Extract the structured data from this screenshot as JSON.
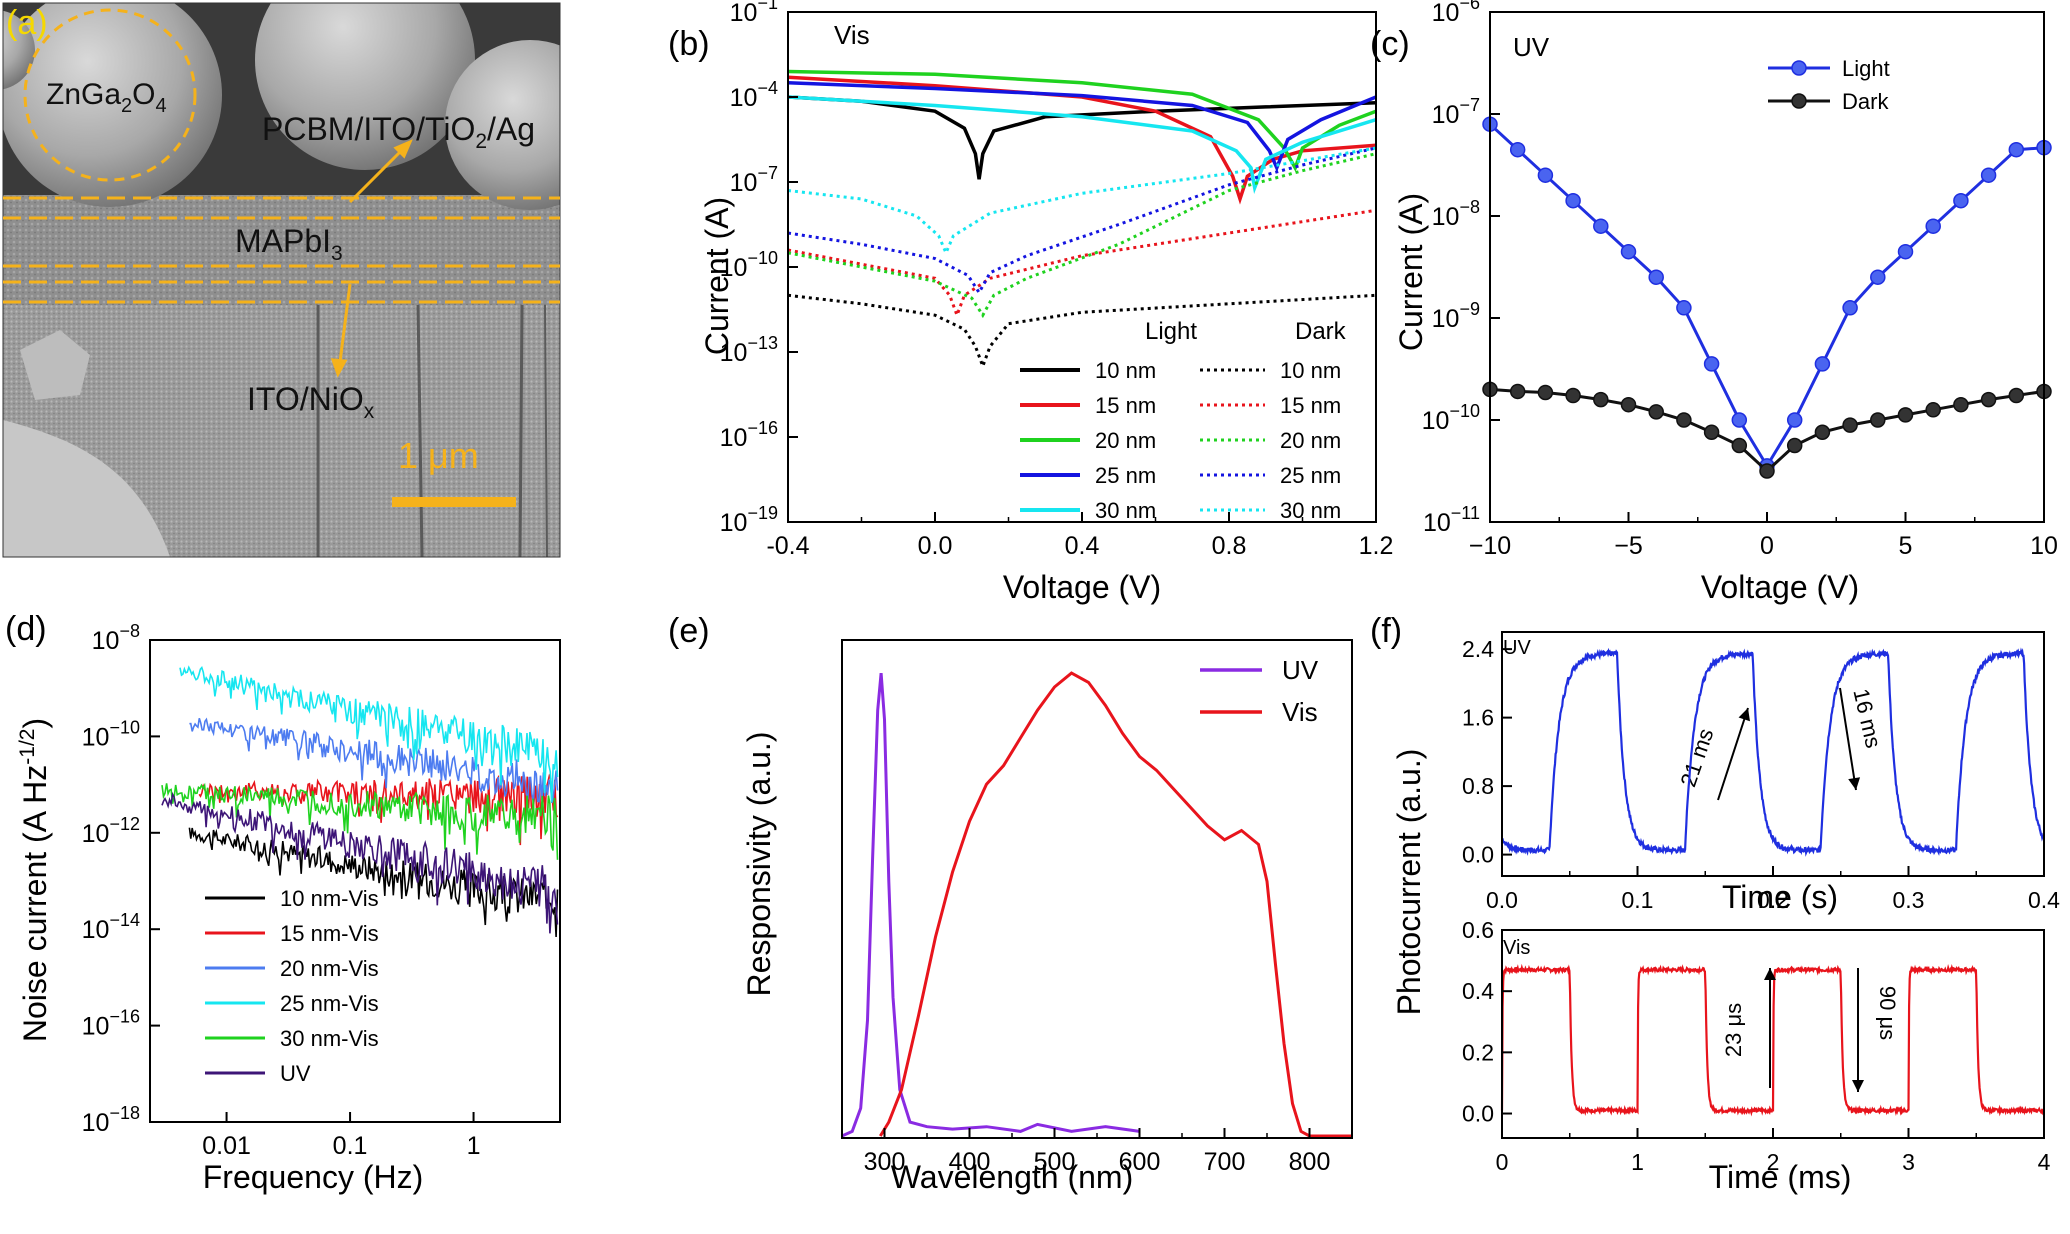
{
  "panels": {
    "a": {
      "label": "(a)",
      "sphere_label": "ZnGa",
      "sphere_sub": "2",
      "sphere_tail": "O",
      "sphere_sub2": "4",
      "top_layer_main": "PCBM/ITO/TiO",
      "top_layer_sub": "2",
      "top_layer_tail": "/Ag",
      "perovskite_main": "MAPbI",
      "perovskite_sub": "3",
      "bottom_layer_main": "ITO/NiO",
      "bottom_layer_sub": "x",
      "scale_bar_label": "1 μm",
      "colors": {
        "dash": "#f5b21b",
        "label": "#111111",
        "scale_text": "#f5b21b",
        "panel_label": "#f5d800"
      }
    },
    "b": {
      "label": "(b)",
      "mode": "Vis",
      "xlabel": "Voltage (V)",
      "ylabel": "Current (A)",
      "legend_light": "Light",
      "legend_dark": "Dark"
    },
    "c": {
      "label": "(c)",
      "mode": "UV",
      "xlabel": "Voltage (V)",
      "ylabel": "Current (A)"
    },
    "d": {
      "label": "(d)",
      "xlabel": "Frequency (Hz)",
      "ylabel_main": "Noise current (A Hz",
      "ylabel_sup": "-1/2",
      "ylabel_tail": ")"
    },
    "e": {
      "label": "(e)",
      "xlabel": "Wavelength (nm)",
      "ylabel": "Responsivity (a.u.)"
    },
    "f": {
      "label": "(f)",
      "ylabel": "Photocurrent (a.u.)",
      "top_xlabel": "Time (s)",
      "bottom_xlabel": "Time (ms)",
      "top_mode": "UV",
      "bottom_mode": "Vis",
      "rise_top": "21 ms",
      "fall_top": "16 ms",
      "rise_bottom": "23 μs",
      "fall_bottom": "90 μs"
    }
  },
  "chart_data": [
    {
      "panel": "b",
      "type": "line",
      "xlim": [
        -0.4,
        1.2
      ],
      "xticks": [
        -0.4,
        0.0,
        0.4,
        0.8,
        1.2
      ],
      "xtick_labels": [
        "-0.4",
        "0.0",
        "0.4",
        "0.8",
        "1.2"
      ],
      "ylog": true,
      "ylim_exp": [
        -19,
        -1
      ],
      "ytick_exps": [
        -19,
        -16,
        -13,
        -10,
        -7,
        -4,
        -1
      ],
      "series": [
        {
          "name": "10 nm",
          "group": "Light",
          "color": "#000000",
          "dash": "solid",
          "v0": 0.12,
          "x": [
            -0.4,
            -0.2,
            0.0,
            0.08,
            0.11,
            0.12,
            0.13,
            0.16,
            0.3,
            0.6,
            0.9,
            1.2
          ],
          "y_exp": [
            -4.0,
            -4.15,
            -4.5,
            -5.1,
            -6.0,
            -6.9,
            -6.0,
            -5.2,
            -4.7,
            -4.5,
            -4.35,
            -4.2
          ]
        },
        {
          "name": "15 nm",
          "group": "Light",
          "color": "#e8141c",
          "dash": "solid",
          "v0": 0.83,
          "x": [
            -0.4,
            0.0,
            0.4,
            0.6,
            0.75,
            0.81,
            0.83,
            0.85,
            0.92,
            1.0,
            1.2
          ],
          "y_exp": [
            -3.3,
            -3.6,
            -4.0,
            -4.5,
            -5.4,
            -6.8,
            -7.6,
            -6.8,
            -6.2,
            -5.9,
            -5.7
          ]
        },
        {
          "name": "20 nm",
          "group": "Light",
          "color": "#1fd21f",
          "dash": "solid",
          "v0": 0.98,
          "x": [
            -0.4,
            0.0,
            0.4,
            0.7,
            0.88,
            0.95,
            0.98,
            1.0,
            1.1,
            1.2
          ],
          "y_exp": [
            -3.1,
            -3.2,
            -3.5,
            -3.9,
            -4.8,
            -5.8,
            -6.5,
            -5.8,
            -5.0,
            -4.5
          ]
        },
        {
          "name": "25 nm",
          "group": "Light",
          "color": "#1414e0",
          "dash": "solid",
          "v0": 0.93,
          "x": [
            -0.4,
            0.0,
            0.4,
            0.7,
            0.85,
            0.91,
            0.93,
            0.96,
            1.05,
            1.2
          ],
          "y_exp": [
            -3.5,
            -3.7,
            -3.95,
            -4.3,
            -4.9,
            -5.9,
            -6.5,
            -5.5,
            -4.8,
            -4.0
          ]
        },
        {
          "name": "30 nm",
          "group": "Light",
          "color": "#16e6f0",
          "dash": "solid",
          "v0": 0.87,
          "x": [
            -0.4,
            0.0,
            0.4,
            0.7,
            0.82,
            0.86,
            0.87,
            0.9,
            1.0,
            1.2
          ],
          "y_exp": [
            -4.0,
            -4.3,
            -4.7,
            -5.2,
            -5.9,
            -6.5,
            -7.2,
            -6.2,
            -5.6,
            -4.8
          ]
        },
        {
          "name": "10 nm",
          "group": "Dark",
          "color": "#000000",
          "dash": "dotted",
          "v0": 0.13,
          "x": [
            -0.4,
            -0.2,
            0.0,
            0.08,
            0.11,
            0.13,
            0.15,
            0.2,
            0.4,
            0.8,
            1.2
          ],
          "y_exp": [
            -11.0,
            -11.3,
            -11.7,
            -12.2,
            -12.8,
            -13.5,
            -12.8,
            -12.0,
            -11.6,
            -11.3,
            -11.0
          ]
        },
        {
          "name": "15 nm",
          "group": "Dark",
          "color": "#e8141c",
          "dash": "dotted",
          "v0": 0.06,
          "x": [
            -0.4,
            -0.2,
            0.0,
            0.04,
            0.06,
            0.08,
            0.15,
            0.4,
            0.8,
            1.2
          ],
          "y_exp": [
            -9.4,
            -9.9,
            -10.4,
            -11.0,
            -11.7,
            -11.0,
            -10.4,
            -9.6,
            -8.8,
            -8.0
          ]
        },
        {
          "name": "20 nm",
          "group": "Dark",
          "color": "#1fd21f",
          "dash": "dotted",
          "v0": 0.13,
          "x": [
            -0.4,
            -0.2,
            0.0,
            0.1,
            0.13,
            0.16,
            0.25,
            0.5,
            0.8,
            1.0,
            1.2
          ],
          "y_exp": [
            -9.5,
            -10.0,
            -10.5,
            -11.1,
            -11.7,
            -11.0,
            -10.4,
            -9.2,
            -7.3,
            -6.6,
            -6.0
          ]
        },
        {
          "name": "25 nm",
          "group": "Dark",
          "color": "#1414e0",
          "dash": "dotted",
          "v0": 0.12,
          "x": [
            -0.4,
            -0.2,
            0.0,
            0.09,
            0.12,
            0.15,
            0.25,
            0.5,
            0.8,
            1.0,
            1.2
          ],
          "y_exp": [
            -8.8,
            -9.2,
            -9.7,
            -10.3,
            -10.9,
            -10.2,
            -9.6,
            -8.5,
            -7.1,
            -6.4,
            -5.8
          ]
        },
        {
          "name": "30 nm",
          "group": "Dark",
          "color": "#16e6f0",
          "dash": "dotted",
          "v0": 0.03,
          "x": [
            -0.4,
            -0.2,
            -0.05,
            0.01,
            0.03,
            0.05,
            0.15,
            0.4,
            0.8,
            1.2
          ],
          "y_exp": [
            -7.3,
            -7.6,
            -8.2,
            -8.9,
            -9.5,
            -8.9,
            -8.1,
            -7.4,
            -6.7,
            -5.8
          ]
        }
      ]
    },
    {
      "panel": "c",
      "type": "line",
      "xlim": [
        -10,
        10
      ],
      "xticks": [
        -10,
        -5,
        0,
        5,
        10
      ],
      "xtick_labels": [
        "−10",
        "−5",
        "0",
        "5",
        "10"
      ],
      "ylog": true,
      "ylim_exp": [
        -11,
        -6
      ],
      "ytick_exps": [
        -11,
        -10,
        -9,
        -8,
        -7,
        -6
      ],
      "series": [
        {
          "name": "Light",
          "color": "#1f2fe0",
          "marker_color": "#4a64f0",
          "x": [
            -10,
            -9,
            -8,
            -7,
            -6,
            -5,
            -4,
            -3,
            -2,
            -1,
            0,
            1,
            2,
            3,
            4,
            5,
            6,
            7,
            8,
            9,
            10
          ],
          "y_exp": [
            -7.1,
            -7.35,
            -7.6,
            -7.85,
            -8.1,
            -8.35,
            -8.6,
            -8.9,
            -9.45,
            -10.0,
            -10.45,
            -10.0,
            -9.45,
            -8.9,
            -8.6,
            -8.35,
            -8.1,
            -7.85,
            -7.6,
            -7.35,
            -7.33
          ]
        },
        {
          "name": "Dark",
          "color": "#111111",
          "marker_color": "#333333",
          "x": [
            -10,
            -9,
            -8,
            -7,
            -6,
            -5,
            -4,
            -3,
            -2,
            -1,
            0,
            1,
            2,
            3,
            4,
            5,
            6,
            7,
            8,
            9,
            10
          ],
          "y_exp": [
            -9.7,
            -9.72,
            -9.73,
            -9.76,
            -9.8,
            -9.85,
            -9.92,
            -10.0,
            -10.12,
            -10.25,
            -10.5,
            -10.25,
            -10.12,
            -10.05,
            -10.0,
            -9.95,
            -9.9,
            -9.85,
            -9.8,
            -9.76,
            -9.72
          ]
        }
      ]
    },
    {
      "panel": "d",
      "type": "line",
      "xlog": true,
      "xlim_exp": [
        -2.62,
        0.7
      ],
      "xtick_exps": [
        -2,
        -1,
        0
      ],
      "xtick_labels": [
        "0.01",
        "0.1",
        "1"
      ],
      "ylog": true,
      "ylim_exp": [
        -18,
        -8
      ],
      "ytick_exps": [
        -18,
        -16,
        -14,
        -12,
        -10,
        -8
      ],
      "series": [
        {
          "name": "10 nm-Vis",
          "color": "#000000",
          "f_start": 0.005,
          "start_exp": -12.0,
          "slope": -0.5,
          "noise": 0.45,
          "floor_exp": -13.3
        },
        {
          "name": "15 nm-Vis",
          "color": "#e8141c",
          "f_start": 0.006,
          "start_exp": -11.1,
          "slope": -0.05,
          "noise": 0.45,
          "floor_exp": -11.6
        },
        {
          "name": "20 nm-Vis",
          "color": "#4d7cf0",
          "f_start": 0.005,
          "start_exp": -9.7,
          "slope": -0.45,
          "noise": 0.45,
          "floor_exp": -11.8
        },
        {
          "name": "25 nm-Vis",
          "color": "#16e6f0",
          "f_start": 0.0042,
          "start_exp": -8.6,
          "slope": -0.6,
          "noise": 0.45,
          "floor_exp": -11.2
        },
        {
          "name": "30 nm-Vis",
          "color": "#1fd21f",
          "f_start": 0.003,
          "start_exp": -11.1,
          "slope": -0.2,
          "noise": 0.45,
          "floor_exp": -11.6
        },
        {
          "name": "UV",
          "color": "#3d1577",
          "f_start": 0.003,
          "start_exp": -11.3,
          "slope": -0.6,
          "noise": 0.5,
          "floor_exp": -14.1
        }
      ]
    },
    {
      "panel": "e",
      "type": "line",
      "xlim": [
        250,
        850
      ],
      "xticks": [
        300,
        400,
        500,
        600,
        700,
        800
      ],
      "xtick_labels": [
        "300",
        "400",
        "500",
        "600",
        "700",
        "800"
      ],
      "ylim": [
        0,
        1.05
      ],
      "series": [
        {
          "name": "UV",
          "color": "#8a2be2",
          "x": [
            250,
            262,
            272,
            280,
            286,
            292,
            296,
            300,
            305,
            310,
            318,
            330,
            350,
            380,
            420,
            460,
            480,
            520,
            560,
            600
          ],
          "y": [
            0.0,
            0.01,
            0.06,
            0.25,
            0.6,
            0.92,
            1.0,
            0.9,
            0.55,
            0.3,
            0.1,
            0.03,
            0.02,
            0.015,
            0.02,
            0.01,
            0.025,
            0.01,
            0.02,
            0.01
          ]
        },
        {
          "name": "Vis",
          "color": "#e8141c",
          "x": [
            295,
            305,
            320,
            340,
            360,
            380,
            400,
            420,
            440,
            460,
            480,
            500,
            520,
            540,
            560,
            580,
            600,
            620,
            640,
            660,
            680,
            700,
            720,
            740,
            750,
            760,
            770,
            780,
            790,
            800,
            820,
            850
          ],
          "y": [
            0.0,
            0.03,
            0.1,
            0.26,
            0.43,
            0.57,
            0.68,
            0.76,
            0.8,
            0.86,
            0.92,
            0.97,
            1.0,
            0.98,
            0.93,
            0.87,
            0.82,
            0.79,
            0.75,
            0.71,
            0.67,
            0.64,
            0.66,
            0.63,
            0.55,
            0.37,
            0.2,
            0.07,
            0.01,
            0.0,
            0.0,
            0.0
          ]
        }
      ]
    },
    {
      "panel": "f-top",
      "type": "line",
      "xlim": [
        0,
        0.4
      ],
      "xticks": [
        0.0,
        0.1,
        0.2,
        0.3,
        0.4
      ],
      "xtick_labels": [
        "0.0",
        "0.1",
        "0.2",
        "0.3",
        "0.4"
      ],
      "ylim": [
        -0.25,
        2.6
      ],
      "yticks": [
        0.0,
        0.8,
        1.6,
        2.4
      ],
      "ytick_labels": [
        "0.0",
        "0.8",
        "1.6",
        "2.4"
      ],
      "series": [
        {
          "name": "UV",
          "color": "#1f2fe0",
          "period": 0.1,
          "on_start": 0.035,
          "on_dur": 0.05,
          "high": 2.35,
          "low": 0.05,
          "tau_rise": 0.021,
          "tau_fall": 0.016,
          "mode": "falling-first"
        }
      ]
    },
    {
      "panel": "f-bottom",
      "type": "line",
      "xlim": [
        0,
        4
      ],
      "xticks": [
        0,
        1,
        2,
        3,
        4
      ],
      "xtick_labels": [
        "0",
        "1",
        "2",
        "3",
        "4"
      ],
      "ylim": [
        -0.08,
        0.6
      ],
      "yticks": [
        0.0,
        0.2,
        0.4,
        0.6
      ],
      "ytick_labels": [
        "0.0",
        "0.2",
        "0.4",
        "0.6"
      ],
      "series": [
        {
          "name": "Vis",
          "color": "#e8141c",
          "period": 1.0,
          "on_start": 0.0,
          "on_dur": 0.5,
          "high": 0.47,
          "low": 0.01,
          "tau_rise": 0.01,
          "tau_fall": 0.04
        }
      ]
    }
  ]
}
